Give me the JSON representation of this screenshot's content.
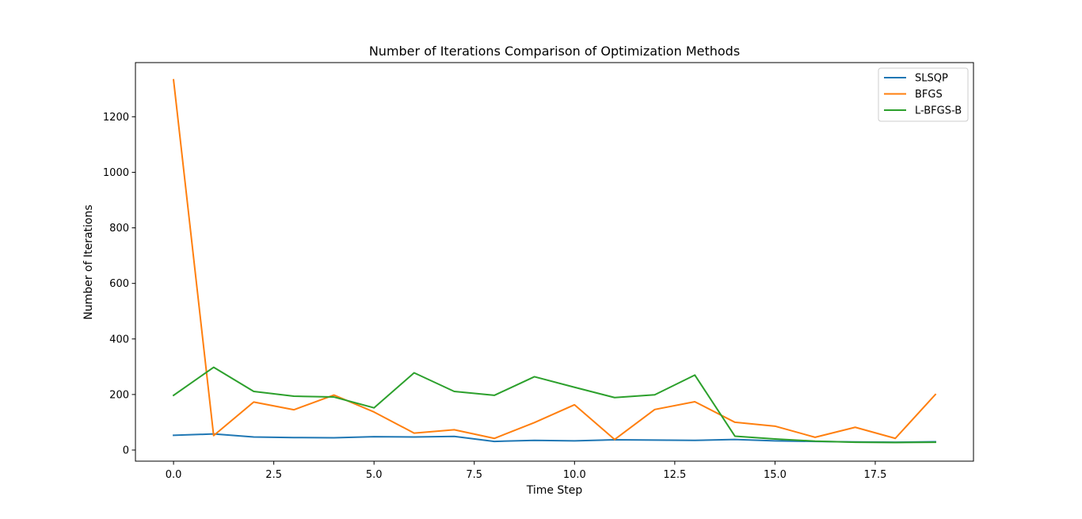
{
  "chart_data": {
    "type": "line",
    "title": "Number of Iterations Comparison of Optimization Methods",
    "xlabel": "Time Step",
    "ylabel": "Number of Iterations",
    "xlim": [
      -0.95,
      19.95
    ],
    "ylim": [
      -40,
      1395
    ],
    "xticks": [
      0.0,
      2.5,
      5.0,
      7.5,
      10.0,
      12.5,
      15.0,
      17.5
    ],
    "xtick_labels": [
      "0.0",
      "2.5",
      "5.0",
      "7.5",
      "10.0",
      "12.5",
      "15.0",
      "17.5"
    ],
    "yticks": [
      0,
      200,
      400,
      600,
      800,
      1000,
      1200
    ],
    "ytick_labels": [
      "0",
      "200",
      "400",
      "600",
      "800",
      "1000",
      "1200"
    ],
    "grid": false,
    "legend_position": "top-right",
    "x": [
      0,
      1,
      2,
      3,
      4,
      5,
      6,
      7,
      8,
      9,
      10,
      11,
      12,
      13,
      14,
      15,
      16,
      17,
      18,
      19
    ],
    "series": [
      {
        "name": "SLSQP",
        "color": "#1f77b4",
        "values": [
          53,
          58,
          47,
          45,
          44,
          48,
          47,
          49,
          31,
          35,
          33,
          37,
          36,
          35,
          38,
          33,
          31,
          29,
          28,
          30
        ]
      },
      {
        "name": "BFGS",
        "color": "#ff7f0e",
        "values": [
          1333,
          52,
          173,
          145,
          198,
          137,
          61,
          73,
          42,
          99,
          163,
          38,
          146,
          174,
          100,
          86,
          46,
          82,
          42,
          200
        ]
      },
      {
        "name": "L-BFGS-B",
        "color": "#2ca02c",
        "values": [
          197,
          298,
          211,
          194,
          191,
          152,
          278,
          211,
          197,
          264,
          226,
          189,
          199,
          270,
          50,
          40,
          32,
          28,
          27,
          28
        ]
      }
    ]
  }
}
